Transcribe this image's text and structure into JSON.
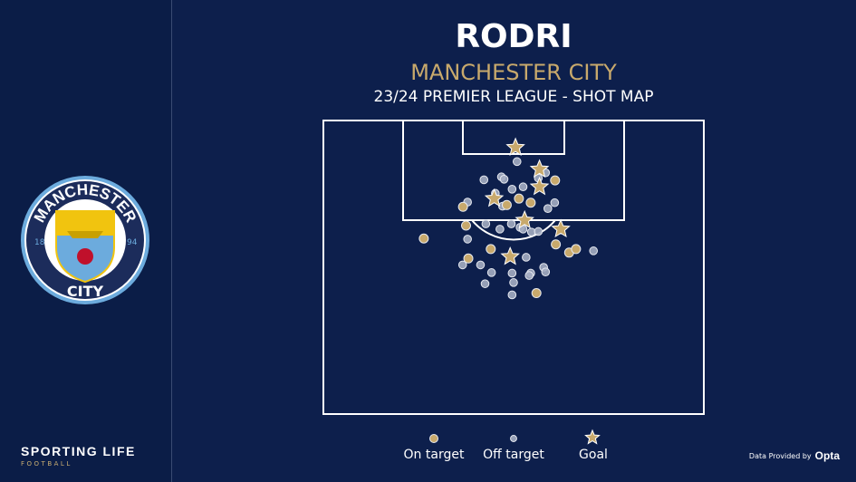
{
  "header": {
    "player": "RODRI",
    "team": "MANCHESTER CITY",
    "subtitle": "23/24 PREMIER LEAGUE - SHOT MAP"
  },
  "crest": {
    "text_top": "MANCHESTER",
    "text_bottom": "CITY",
    "year_left": "18",
    "year_right": "94"
  },
  "branding": {
    "name": "SPORTING LIFE",
    "sub": "FOOTBALL"
  },
  "credit": {
    "label": "Data Provided by",
    "provider": "Opta"
  },
  "colors": {
    "background": "#0d1f4c",
    "on_target": "#c8a96c",
    "off_target": "#a4adc2",
    "goal": "#c8a96c",
    "lines": "#ffffff"
  },
  "legend": [
    {
      "label": "On target",
      "marker": "circle-gold"
    },
    {
      "label": "Off target",
      "marker": "circle-grey"
    },
    {
      "label": "Goal",
      "marker": "star-gold"
    }
  ],
  "chart_data": {
    "type": "scatter",
    "title": "RODRI",
    "subtitle": "23/24 PREMIER LEAGUE - SHOT MAP",
    "pitch": "half-pitch, attacking goal at top",
    "x_range": [
      0,
      100
    ],
    "y_range": [
      0,
      50
    ],
    "legend_placement": "bottom",
    "series": [
      {
        "name": "Off target",
        "points": [
          [
            50.9,
            7.0
          ],
          [
            58.4,
            8.9
          ],
          [
            42.2,
            10.1
          ],
          [
            46.8,
            9.6
          ],
          [
            47.5,
            10.0
          ],
          [
            49.6,
            11.7
          ],
          [
            52.5,
            11.3
          ],
          [
            56.5,
            9.8
          ],
          [
            45.2,
            12.4
          ],
          [
            37.9,
            13.9
          ],
          [
            47.1,
            14.6
          ],
          [
            60.8,
            14.0
          ],
          [
            59.0,
            15.0
          ],
          [
            42.7,
            17.6
          ],
          [
            46.4,
            18.5
          ],
          [
            49.4,
            17.6
          ],
          [
            51.7,
            18.2
          ],
          [
            52.5,
            18.5
          ],
          [
            54.7,
            19.0
          ],
          [
            56.5,
            18.9
          ],
          [
            37.9,
            20.2
          ],
          [
            71.0,
            22.2
          ],
          [
            53.3,
            23.3
          ],
          [
            36.6,
            24.6
          ],
          [
            41.3,
            24.6
          ],
          [
            44.2,
            25.9
          ],
          [
            49.6,
            26.0
          ],
          [
            54.5,
            26.0
          ],
          [
            54.1,
            26.4
          ],
          [
            57.9,
            25.0
          ],
          [
            58.4,
            25.8
          ],
          [
            42.5,
            27.8
          ],
          [
            50.0,
            27.6
          ],
          [
            49.6,
            29.7
          ]
        ]
      },
      {
        "name": "On target",
        "points": [
          [
            60.9,
            10.2
          ],
          [
            36.7,
            14.7
          ],
          [
            48.2,
            14.4
          ],
          [
            51.4,
            13.3
          ],
          [
            54.5,
            14.0
          ],
          [
            37.5,
            17.9
          ],
          [
            26.4,
            20.1
          ],
          [
            44.0,
            21.9
          ],
          [
            61.1,
            21.1
          ],
          [
            64.6,
            22.5
          ],
          [
            66.4,
            21.9
          ],
          [
            38.1,
            23.5
          ],
          [
            56.0,
            29.4
          ]
        ]
      },
      {
        "name": "Goal",
        "points": [
          [
            50.5,
            4.6
          ],
          [
            56.8,
            8.3
          ],
          [
            56.8,
            11.3
          ],
          [
            44.9,
            13.3
          ],
          [
            52.9,
            17.0
          ],
          [
            62.4,
            18.5
          ],
          [
            49.1,
            23.2
          ]
        ]
      }
    ]
  }
}
